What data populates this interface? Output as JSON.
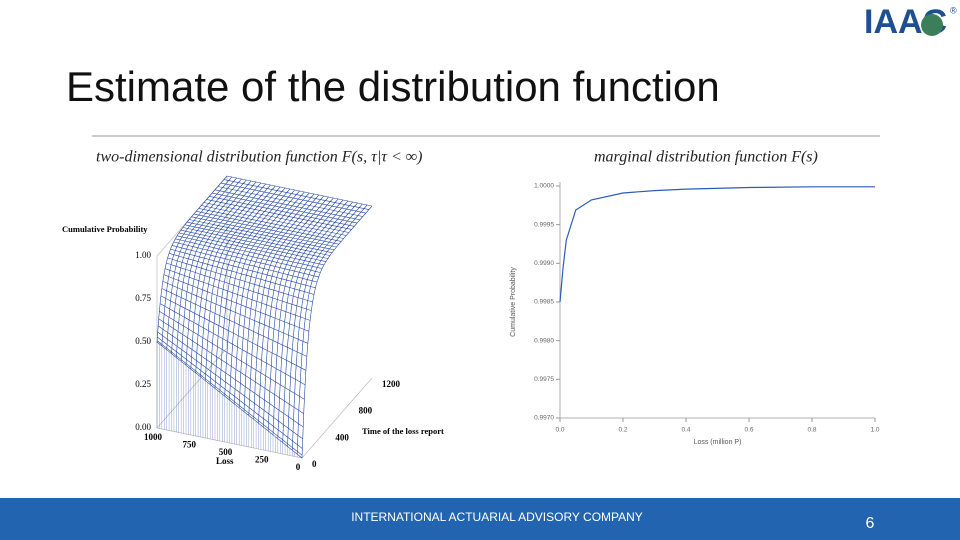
{
  "header": {
    "title": "Estimate of the distribution function",
    "logo": "IAAC",
    "logo_mark": "®"
  },
  "footer": {
    "company": "INTERNATIONAL ACTUARIAL ADVISORY COMPANY",
    "page": "6"
  },
  "chart_data": [
    {
      "type": "surface",
      "title": "two-dimensional distribution function F(s, τ|τ < ∞)",
      "zlabel": "Cumulative Probability",
      "xlabel": "Loss",
      "ylabel": "Time of the loss report",
      "color": "#2447a8",
      "xlim": [
        0,
        1000
      ],
      "xticks": [
        1000,
        750,
        500,
        250,
        0
      ],
      "ylim": [
        0,
        1200
      ],
      "yticks": [
        0,
        400,
        800,
        1200
      ],
      "zlim": [
        0,
        1
      ],
      "zticks": [
        {
          "value": 0,
          "label": "0.00"
        },
        {
          "value": 0.25,
          "label": "0.25"
        },
        {
          "value": 0.5,
          "label": "0.50"
        },
        {
          "value": 0.75,
          "label": "0.75"
        },
        {
          "value": 1,
          "label": "1.00"
        }
      ]
    },
    {
      "type": "line",
      "title": "marginal distribution function F(s)",
      "xlabel": "Loss (million P)",
      "ylabel": "Cumulative Probability",
      "color": "#2a5cb8",
      "x": [
        0,
        0.01,
        0.02,
        0.05,
        0.1,
        0.2,
        0.3,
        0.4,
        0.6,
        0.8,
        1.0
      ],
      "values": [
        0.9985,
        0.99895,
        0.9993,
        0.99969,
        0.99982,
        0.99991,
        0.99994,
        0.99996,
        0.99998,
        0.99999,
        0.99999
      ],
      "xlim": [
        0,
        1
      ],
      "xticks": [
        {
          "value": 0,
          "label": "0.0"
        },
        {
          "value": 0.2,
          "label": "0.2"
        },
        {
          "value": 0.4,
          "label": "0.4"
        },
        {
          "value": 0.6,
          "label": "0.6"
        },
        {
          "value": 0.8,
          "label": "0.8"
        },
        {
          "value": 1,
          "label": "1.0"
        }
      ],
      "ylim": [
        0.997,
        1
      ],
      "yticks": [
        {
          "value": 0.997,
          "label": "0.9970"
        },
        {
          "value": 0.9975,
          "label": "0.9975"
        },
        {
          "value": 0.998,
          "label": "0.9980"
        },
        {
          "value": 0.9985,
          "label": "0.9985"
        },
        {
          "value": 0.999,
          "label": "0.9990"
        },
        {
          "value": 0.9995,
          "label": "0.9995"
        },
        {
          "value": 1,
          "label": "1.0000"
        }
      ]
    }
  ]
}
